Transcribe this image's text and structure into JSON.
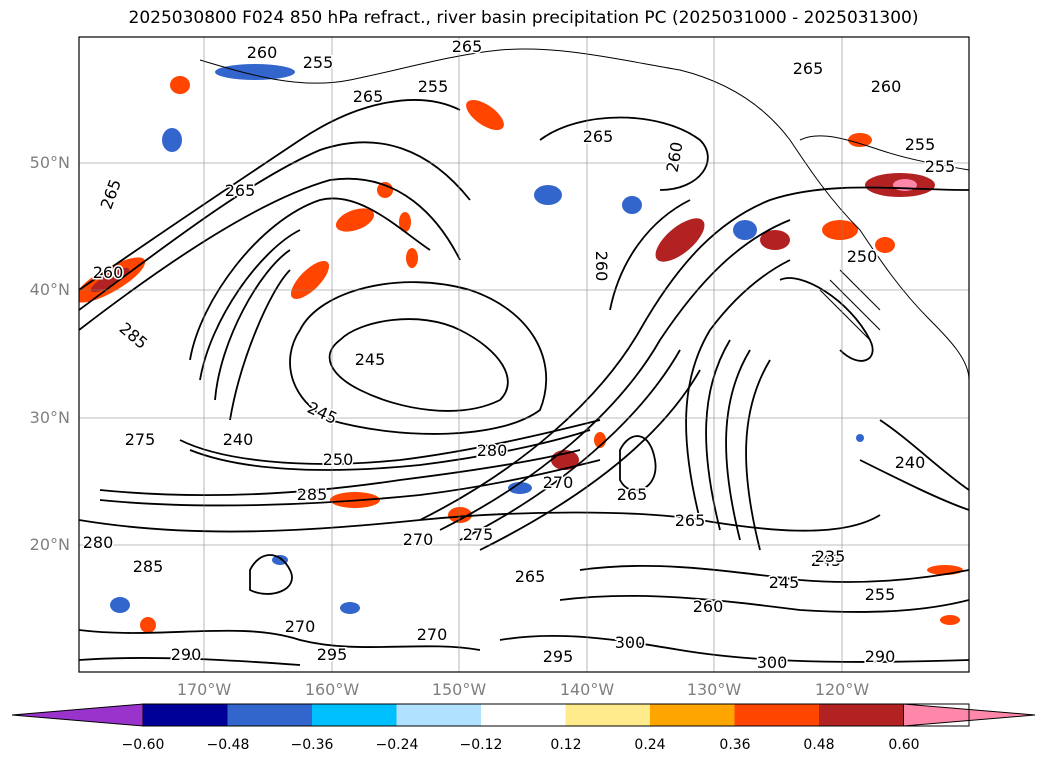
{
  "title": "2025030800 F024 850 hPa refract., river basin precipitation PC (2025031000 - 2025031300)",
  "lat_labels": [
    "50°N",
    "40°N",
    "30°N",
    "20°N"
  ],
  "lon_labels": [
    "170°W",
    "160°W",
    "150°W",
    "140°W",
    "130°W",
    "120°W"
  ],
  "colorbar": {
    "ticks": [
      "−0.60",
      "−0.48",
      "−0.36",
      "−0.24",
      "−0.12",
      "0.12",
      "0.24",
      "0.36",
      "0.48",
      "0.60"
    ],
    "colors": [
      "#9933cc",
      "#000099",
      "#3366cc",
      "#00bfff",
      "#b0e2ff",
      "#ffffff",
      "#ffeb8c",
      "#ffa500",
      "#ff4500",
      "#b22222",
      "#ff88aa"
    ]
  },
  "contour_labels": [
    "260",
    "255",
    "265",
    "255",
    "265",
    "265",
    "260",
    "265",
    "260",
    "255",
    "265",
    "265",
    "260",
    "285",
    "245",
    "245",
    "275",
    "240",
    "250",
    "280",
    "270",
    "265",
    "265",
    "250",
    "245",
    "270",
    "275",
    "285",
    "280",
    "270",
    "235",
    "245",
    "255",
    "260",
    "270",
    "290",
    "295",
    "295",
    "300",
    "300",
    "290",
    "260",
    "255",
    "240",
    "265",
    "285"
  ]
}
